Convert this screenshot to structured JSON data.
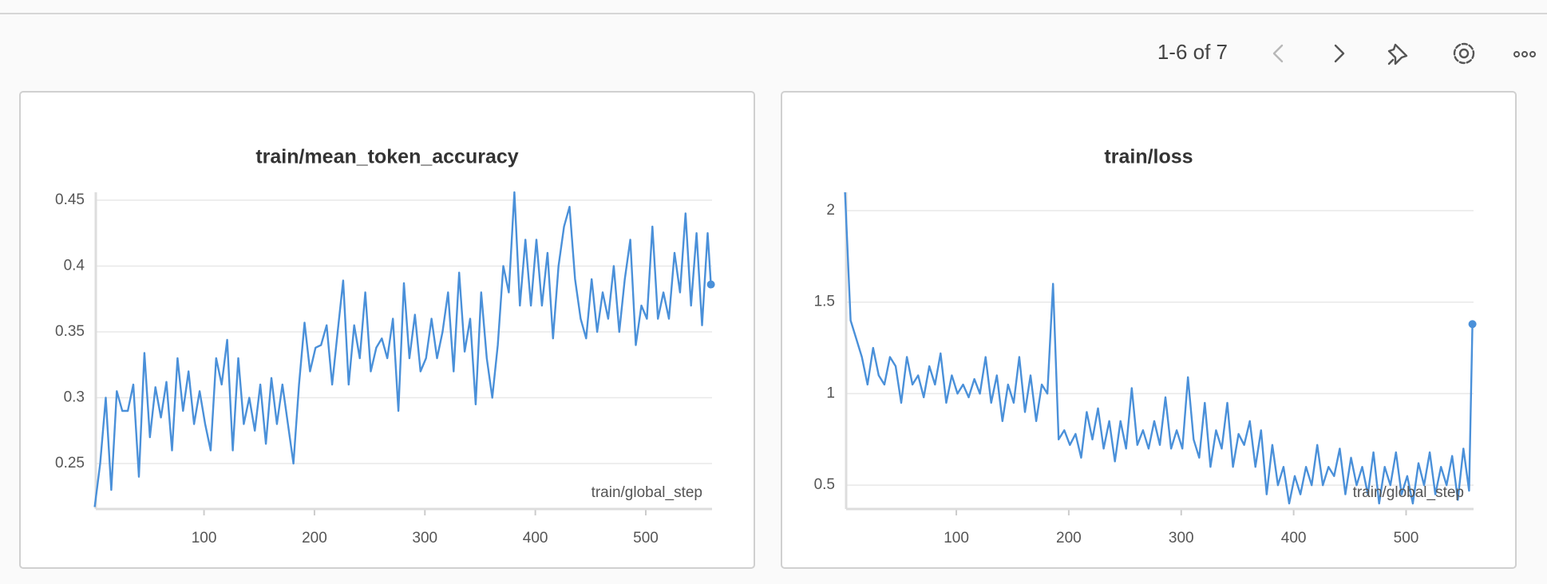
{
  "pagination": "1-6 of 7",
  "chart_data": [
    {
      "type": "line",
      "title": "train/mean_token_accuracy",
      "xlabel": "train/global_step",
      "color": "#4a90d9",
      "grid": true,
      "xlim": [
        2,
        560
      ],
      "ylim": [
        0.2155,
        0.456
      ],
      "xticks": [
        100,
        200,
        300,
        400,
        500
      ],
      "yticks": [
        0.25,
        0.3,
        0.35,
        0.4,
        0.45
      ],
      "x": [
        1,
        6,
        11,
        16,
        21,
        26,
        31,
        36,
        41,
        46,
        51,
        56,
        61,
        66,
        71,
        76,
        81,
        86,
        91,
        96,
        101,
        106,
        111,
        116,
        121,
        126,
        131,
        136,
        141,
        146,
        151,
        156,
        161,
        166,
        171,
        176,
        181,
        186,
        191,
        196,
        201,
        206,
        211,
        216,
        221,
        226,
        231,
        236,
        241,
        246,
        251,
        256,
        261,
        266,
        271,
        276,
        281,
        286,
        291,
        296,
        301,
        306,
        311,
        316,
        321,
        326,
        331,
        336,
        341,
        346,
        351,
        356,
        361,
        366,
        371,
        376,
        381,
        386,
        391,
        396,
        401,
        406,
        411,
        416,
        421,
        426,
        431,
        436,
        441,
        446,
        451,
        456,
        461,
        466,
        471,
        476,
        481,
        486,
        491,
        496,
        501,
        506,
        511,
        516,
        521,
        526,
        531,
        536,
        541,
        546,
        551,
        556,
        559
      ],
      "values": [
        0.217,
        0.25,
        0.3,
        0.23,
        0.305,
        0.29,
        0.29,
        0.31,
        0.24,
        0.334,
        0.27,
        0.308,
        0.285,
        0.312,
        0.26,
        0.33,
        0.29,
        0.32,
        0.28,
        0.305,
        0.28,
        0.26,
        0.33,
        0.31,
        0.344,
        0.26,
        0.33,
        0.28,
        0.3,
        0.275,
        0.31,
        0.265,
        0.315,
        0.28,
        0.31,
        0.28,
        0.25,
        0.31,
        0.357,
        0.32,
        0.338,
        0.34,
        0.355,
        0.31,
        0.35,
        0.389,
        0.31,
        0.355,
        0.33,
        0.38,
        0.32,
        0.338,
        0.345,
        0.33,
        0.36,
        0.29,
        0.387,
        0.33,
        0.363,
        0.32,
        0.33,
        0.36,
        0.33,
        0.35,
        0.38,
        0.32,
        0.395,
        0.335,
        0.36,
        0.295,
        0.38,
        0.33,
        0.3,
        0.34,
        0.4,
        0.38,
        0.456,
        0.37,
        0.42,
        0.37,
        0.42,
        0.37,
        0.41,
        0.345,
        0.4,
        0.43,
        0.445,
        0.39,
        0.36,
        0.345,
        0.39,
        0.35,
        0.38,
        0.36,
        0.4,
        0.35,
        0.39,
        0.42,
        0.34,
        0.37,
        0.36,
        0.43,
        0.36,
        0.38,
        0.36,
        0.41,
        0.38,
        0.44,
        0.37,
        0.425,
        0.355,
        0.425,
        0.386
      ]
    },
    {
      "type": "line",
      "title": "train/loss",
      "xlabel": "train/global_step",
      "color": "#4a90d9",
      "grid": true,
      "xlim": [
        2,
        560
      ],
      "ylim": [
        0.37,
        2.1
      ],
      "xticks": [
        100,
        200,
        300,
        400,
        500
      ],
      "yticks": [
        0.5,
        1,
        1.5,
        2
      ],
      "x": [
        1,
        6,
        11,
        16,
        21,
        26,
        31,
        36,
        41,
        46,
        51,
        56,
        61,
        66,
        71,
        76,
        81,
        86,
        91,
        96,
        101,
        106,
        111,
        116,
        121,
        126,
        131,
        136,
        141,
        146,
        151,
        156,
        161,
        166,
        171,
        176,
        181,
        186,
        191,
        196,
        201,
        206,
        211,
        216,
        221,
        226,
        231,
        236,
        241,
        246,
        251,
        256,
        261,
        266,
        271,
        276,
        281,
        286,
        291,
        296,
        301,
        306,
        311,
        316,
        321,
        326,
        331,
        336,
        341,
        346,
        351,
        356,
        361,
        366,
        371,
        376,
        381,
        386,
        391,
        396,
        401,
        406,
        411,
        416,
        421,
        426,
        431,
        436,
        441,
        446,
        451,
        456,
        461,
        466,
        471,
        476,
        481,
        486,
        491,
        496,
        501,
        506,
        511,
        516,
        521,
        526,
        531,
        536,
        541,
        546,
        551,
        556,
        559
      ],
      "values": [
        2.1,
        1.4,
        1.3,
        1.2,
        1.05,
        1.25,
        1.1,
        1.05,
        1.2,
        1.15,
        0.95,
        1.2,
        1.05,
        1.1,
        0.98,
        1.15,
        1.05,
        1.22,
        0.95,
        1.1,
        1.0,
        1.05,
        0.98,
        1.08,
        1.0,
        1.2,
        0.95,
        1.1,
        0.85,
        1.05,
        0.95,
        1.2,
        0.9,
        1.1,
        0.85,
        1.05,
        1.0,
        1.6,
        0.75,
        0.8,
        0.72,
        0.78,
        0.65,
        0.9,
        0.75,
        0.92,
        0.7,
        0.85,
        0.63,
        0.85,
        0.7,
        1.03,
        0.72,
        0.8,
        0.7,
        0.85,
        0.72,
        0.98,
        0.7,
        0.8,
        0.7,
        1.09,
        0.75,
        0.65,
        0.95,
        0.6,
        0.8,
        0.7,
        0.95,
        0.6,
        0.78,
        0.72,
        0.85,
        0.6,
        0.8,
        0.45,
        0.72,
        0.5,
        0.6,
        0.4,
        0.55,
        0.45,
        0.6,
        0.5,
        0.72,
        0.5,
        0.6,
        0.55,
        0.7,
        0.45,
        0.65,
        0.5,
        0.6,
        0.45,
        0.68,
        0.4,
        0.6,
        0.5,
        0.68,
        0.45,
        0.55,
        0.4,
        0.62,
        0.5,
        0.68,
        0.45,
        0.6,
        0.5,
        0.66,
        0.42,
        0.7,
        0.47,
        1.38
      ]
    }
  ]
}
